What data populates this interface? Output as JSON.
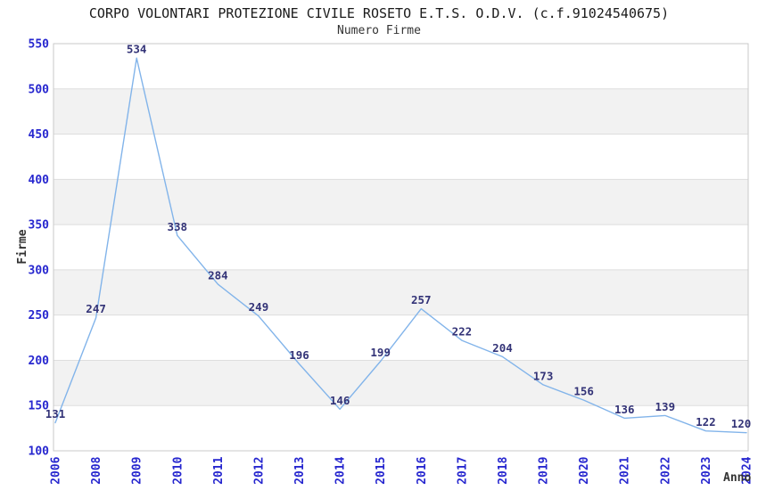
{
  "chart_data": {
    "type": "line",
    "title": "CORPO VOLONTARI PROTEZIONE CIVILE ROSETO E.T.S. O.D.V. (c.f.91024540675)",
    "subtitle": "Numero Firme",
    "xlabel": "Anno",
    "ylabel": "Firme",
    "categories": [
      "2006",
      "2008",
      "2009",
      "2010",
      "2011",
      "2012",
      "2013",
      "2014",
      "2015",
      "2016",
      "2017",
      "2018",
      "2019",
      "2020",
      "2021",
      "2022",
      "2023",
      "2024"
    ],
    "values": [
      131,
      247,
      534,
      338,
      284,
      249,
      196,
      146,
      199,
      257,
      222,
      204,
      173,
      156,
      136,
      139,
      122,
      120
    ],
    "series": [
      {
        "name": "Numero Firme",
        "values": [
          131,
          247,
          534,
          338,
          284,
          249,
          196,
          146,
          199,
          257,
          222,
          204,
          173,
          156,
          136,
          139,
          122,
          120
        ]
      }
    ],
    "ylim": [
      100,
      550
    ],
    "y_ticks": [
      100,
      150,
      200,
      250,
      300,
      350,
      400,
      450,
      500,
      550
    ],
    "grid": true,
    "legend": "none",
    "band_style": "alternating 50-unit horizontal gray bands, gray between 150-200, 250-300, 350-400, 450-500",
    "data_labels_shown": true,
    "x_tick_rotation_deg": -90,
    "colors": {
      "line": "#82b4ea",
      "band": "#f2f2f2",
      "grid": "#dedede",
      "border": "#c9c9c9",
      "tick_label": "#2727cf",
      "data_label": "#333377",
      "title": "#1a1a1a",
      "subtitle": "#333333",
      "axis_title": "#333333",
      "background": "#ffffff"
    }
  }
}
